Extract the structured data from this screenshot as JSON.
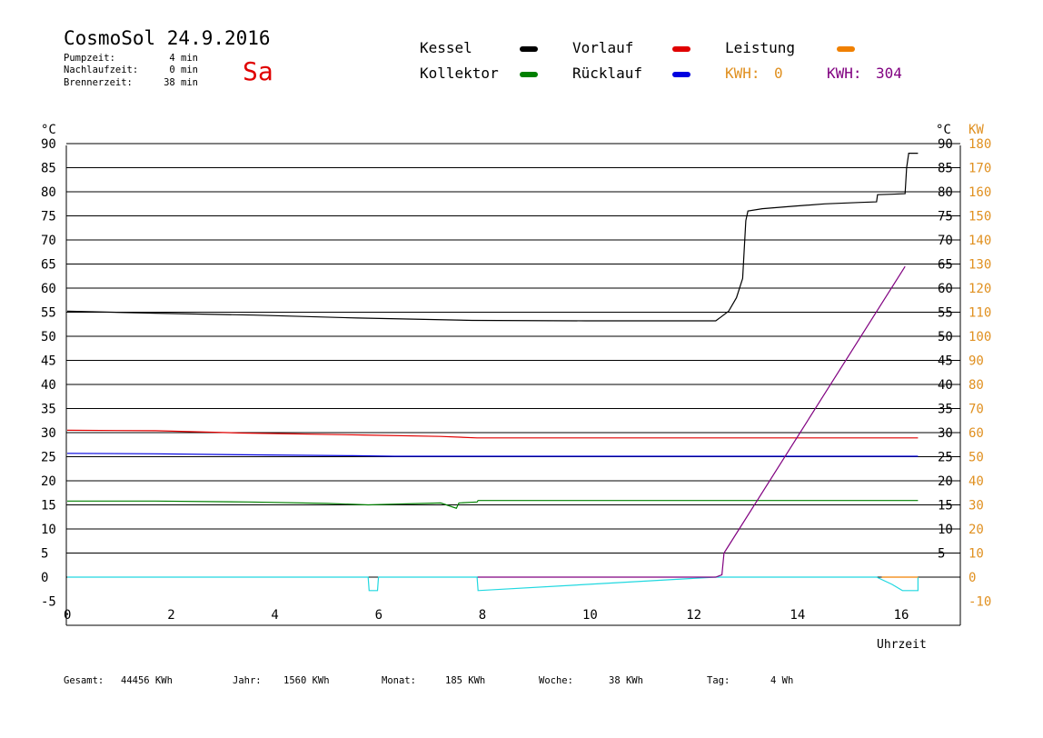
{
  "header": {
    "title": "CosmoSol 24.9.2016",
    "weekday": "Sa",
    "info": [
      {
        "label": "Pumpzeit:",
        "value": "4 min"
      },
      {
        "label": "Nachlaufzeit:",
        "value": "0 min"
      },
      {
        "label": "Brennerzeit:",
        "value": "38 min"
      }
    ]
  },
  "legend": {
    "kessel": {
      "label": "Kessel",
      "color": "#000000"
    },
    "vorlauf": {
      "label": "Vorlauf",
      "color": "#e00000"
    },
    "leistung": {
      "label": "Leistung",
      "color": "#f08000"
    },
    "kollektor": {
      "label": "Kollektor",
      "color": "#008000"
    },
    "ruecklauf": {
      "label": "Rücklauf",
      "color": "#0000e0"
    },
    "kwh_day_label": "KWH:",
    "kwh_day_value": "0",
    "kwh_day_color": "#e09020",
    "kwh_total_label": "KWH:",
    "kwh_total_value": "304",
    "kwh_total_color": "#800080"
  },
  "footer": [
    {
      "label": "Gesamt:",
      "value": "44456 KWh"
    },
    {
      "label": "Jahr:",
      "value": "1560 KWh"
    },
    {
      "label": "Monat:",
      "value": "185 KWh"
    },
    {
      "label": "Woche:",
      "value": "38 KWh"
    },
    {
      "label": "Tag:",
      "value": "4 Wh"
    }
  ],
  "chart_data": {
    "type": "line",
    "xlabel": "Uhrzeit",
    "ylabel_left": "°C",
    "ylabel_right_1": "°C",
    "ylabel_right_2": "KW",
    "xlim": [
      0,
      17.2
    ],
    "ylim_left": [
      -5,
      95
    ],
    "ylim_kw": [
      -10,
      190
    ],
    "x_ticks": [
      0,
      2,
      4,
      6,
      8,
      10,
      12,
      14,
      16
    ],
    "y_ticks_left": [
      -5,
      0,
      5,
      10,
      15,
      20,
      25,
      30,
      35,
      40,
      45,
      50,
      55,
      60,
      65,
      70,
      75,
      80,
      85,
      90
    ],
    "y_ticks_right": [
      5,
      10,
      15,
      20,
      25,
      30,
      35,
      40,
      45,
      50,
      55,
      60,
      65,
      70,
      75,
      80,
      85,
      90
    ],
    "y_ticks_kw": [
      -10,
      0,
      10,
      20,
      30,
      40,
      50,
      60,
      70,
      80,
      90,
      100,
      110,
      120,
      130,
      140,
      150,
      160,
      170,
      180
    ],
    "grid": true,
    "series": [
      {
        "name": "Kessel",
        "color": "#000000",
        "points": [
          [
            0,
            55.2
          ],
          [
            1.7,
            54.8
          ],
          [
            3.6,
            54.4
          ],
          [
            5.6,
            53.8
          ],
          [
            7.8,
            53.3
          ],
          [
            10,
            53.2
          ],
          [
            12.5,
            53.2
          ],
          [
            12.6,
            54
          ],
          [
            12.75,
            55.2
          ],
          [
            12.9,
            58
          ],
          [
            13.02,
            62
          ],
          [
            13.08,
            74
          ],
          [
            13.12,
            76
          ],
          [
            13.4,
            76.5
          ],
          [
            14,
            77
          ],
          [
            14.6,
            77.5
          ],
          [
            15.3,
            77.8
          ],
          [
            15.6,
            77.9
          ],
          [
            15.62,
            79.4
          ],
          [
            15.9,
            79.5
          ],
          [
            16.15,
            79.6
          ],
          [
            16.18,
            85
          ],
          [
            16.22,
            88
          ],
          [
            16.4,
            88
          ]
        ]
      },
      {
        "name": "Vorlauf",
        "color": "#e00000",
        "points": [
          [
            0,
            30.5
          ],
          [
            1.7,
            30.4
          ],
          [
            3.4,
            29.9
          ],
          [
            5.7,
            29.5
          ],
          [
            7.2,
            29.2
          ],
          [
            7.9,
            28.9
          ],
          [
            12,
            28.9
          ],
          [
            16.4,
            28.9
          ]
        ]
      },
      {
        "name": "Rücklauf",
        "color": "#0000e0",
        "points": [
          [
            0,
            25.7
          ],
          [
            1.7,
            25.6
          ],
          [
            3.4,
            25.4
          ],
          [
            5.5,
            25.2
          ],
          [
            6.3,
            25.1
          ],
          [
            8,
            25.1
          ],
          [
            12,
            25.1
          ],
          [
            16.4,
            25.1
          ]
        ]
      },
      {
        "name": "Kollektor",
        "color": "#008000",
        "points": [
          [
            0,
            15.8
          ],
          [
            1.7,
            15.8
          ],
          [
            3.5,
            15.6
          ],
          [
            5,
            15.3
          ],
          [
            5.8,
            15.0
          ],
          [
            7.2,
            15.4
          ],
          [
            7.5,
            14.3
          ],
          [
            7.55,
            15.4
          ],
          [
            7.9,
            15.6
          ],
          [
            7.92,
            15.9
          ],
          [
            12,
            15.9
          ],
          [
            16.4,
            15.9
          ]
        ]
      },
      {
        "name": "Leistung",
        "color": "#20d8e0",
        "points": [
          [
            0,
            0
          ],
          [
            5.8,
            0
          ],
          [
            5.82,
            -2.8
          ],
          [
            5.98,
            -2.8
          ],
          [
            6,
            0
          ],
          [
            7.9,
            0
          ],
          [
            7.92,
            -2.8
          ],
          [
            12.5,
            0
          ],
          [
            15.6,
            0
          ],
          [
            15.9,
            -1.5
          ],
          [
            16.1,
            -2.8
          ],
          [
            16.4,
            -2.8
          ],
          [
            16.4,
            0
          ]
        ]
      },
      {
        "name": "Leistung",
        "color": "#f08000",
        "points": [
          [
            15.7,
            0
          ],
          [
            16.4,
            0
          ]
        ]
      },
      {
        "name": "KWH",
        "color": "#800080",
        "points": [
          [
            7.92,
            0
          ],
          [
            12.5,
            0
          ],
          [
            12.62,
            0.5
          ],
          [
            12.66,
            5
          ],
          [
            16.15,
            64.5
          ]
        ]
      }
    ]
  }
}
